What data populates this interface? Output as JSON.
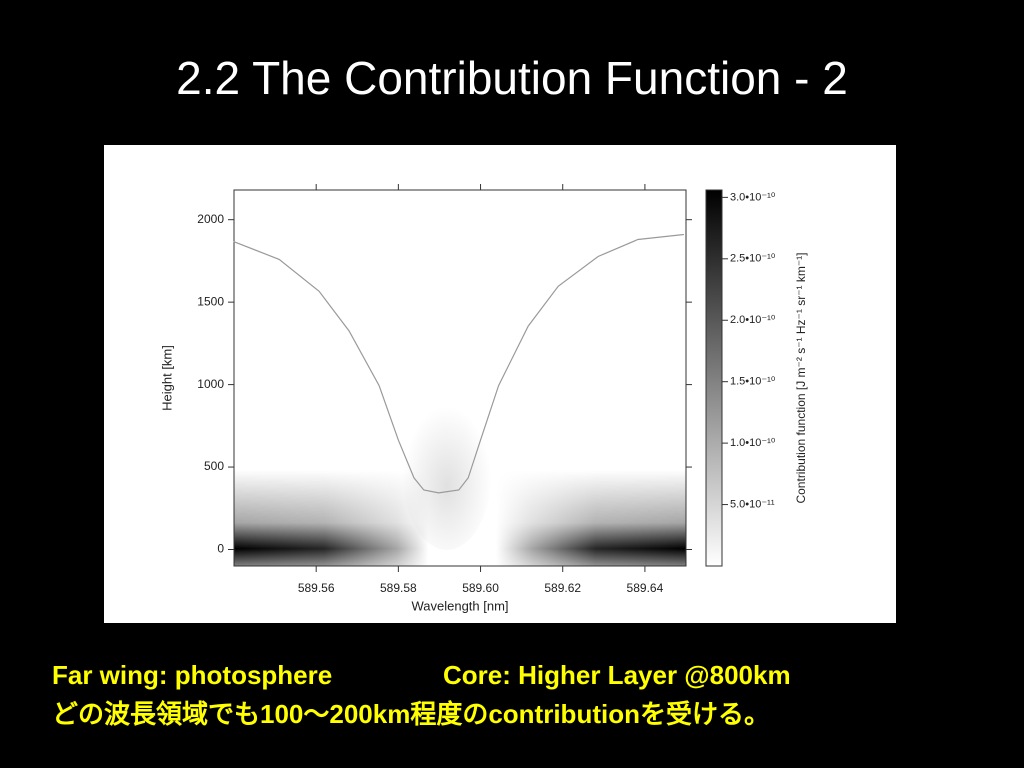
{
  "chart_data": {
    "type": "heatmap",
    "title": "2.2 The Contribution Function - 2",
    "xlabel": "Wavelength [nm]",
    "ylabel": "Height [km]",
    "xlim": [
      589.54,
      589.65
    ],
    "ylim": [
      -100,
      2180
    ],
    "xticks": [
      589.56,
      589.58,
      {
        "value": 589.6,
        "label": "589.60"
      },
      589.62,
      589.64
    ],
    "yticks": [
      0,
      500,
      1000,
      1500,
      2000
    ],
    "colorbar": {
      "label": "Contribution function [J m⁻² s⁻¹ Hz⁻¹ sr⁻¹ km⁻¹]",
      "lim": [
        0,
        3.06e-10
      ],
      "ticks": [
        {
          "value": 3e-10,
          "label": "3.0•10⁻¹⁰"
        },
        {
          "value": 2.5e-10,
          "label": "2.5•10⁻¹⁰"
        },
        {
          "value": 2e-10,
          "label": "2.0•10⁻¹⁰"
        },
        {
          "value": 1.5e-10,
          "label": "1.5•10⁻¹⁰"
        },
        {
          "value": 1e-10,
          "label": "1.0•10⁻¹⁰"
        },
        {
          "value": 5e-11,
          "label": "5.0•10⁻¹¹"
        }
      ]
    },
    "series": [
      {
        "color": "#9a9a9a",
        "x": [
          589.5399,
          589.551,
          589.5607,
          589.568,
          589.5753,
          589.58,
          589.5838,
          589.5862,
          589.5898,
          589.5947,
          589.597,
          589.6,
          589.6044,
          589.6116,
          589.6189,
          589.6286,
          589.6383,
          589.6495
        ],
        "values": [
          1867,
          1759,
          1566,
          1325,
          994,
          663,
          434,
          361,
          343,
          361,
          434,
          663,
          994,
          1355,
          1596,
          1777,
          1880,
          1910
        ]
      }
    ]
  },
  "captions": [
    "Far wing: photosphere",
    "Core: Higher Layer @800km",
    "どの波長領域でも100～200km程度のcontributionを受ける。"
  ]
}
